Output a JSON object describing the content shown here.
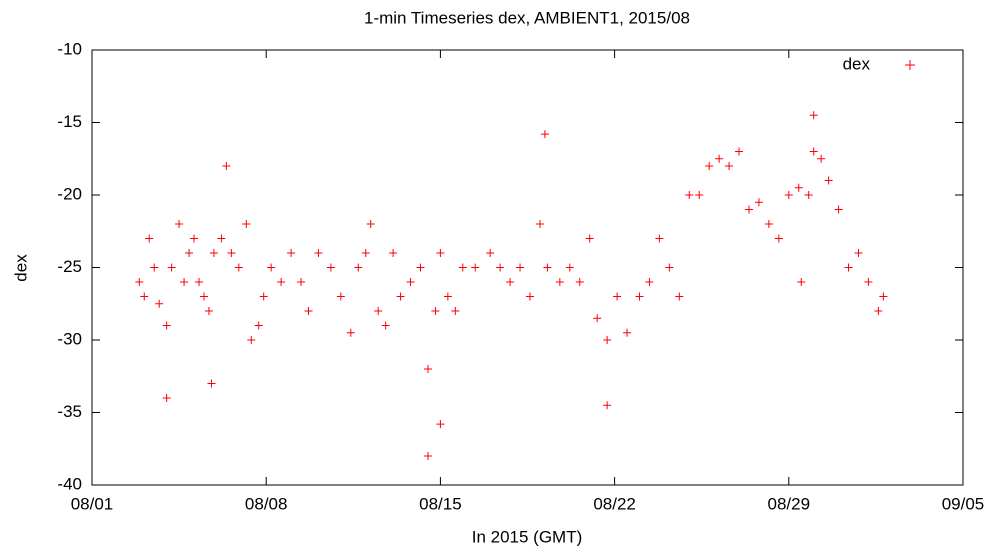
{
  "chart_data": {
    "type": "scatter",
    "title": "1-min Timeseries dex, AMBIENT1, 2015/08",
    "x_label": "In 2015 (GMT)",
    "y_label": "dex",
    "x": [
      2.9,
      3.1,
      3.3,
      3.5,
      3.7,
      4.0,
      4.0,
      4.2,
      4.5,
      4.7,
      4.9,
      5.1,
      5.3,
      5.5,
      5.7,
      5.8,
      5.9,
      6.2,
      6.4,
      6.6,
      6.9,
      7.2,
      7.4,
      7.7,
      7.9,
      8.2,
      8.6,
      9.0,
      9.4,
      9.7,
      10.1,
      10.6,
      11.0,
      11.4,
      11.7,
      12.0,
      12.2,
      12.5,
      12.8,
      13.1,
      13.4,
      13.8,
      14.2,
      14.5,
      14.5,
      14.8,
      15.0,
      15.0,
      15.3,
      15.6,
      15.9,
      16.4,
      17.0,
      17.4,
      17.8,
      18.2,
      18.6,
      19.0,
      19.2,
      19.3,
      19.8,
      20.2,
      20.6,
      21.0,
      21.3,
      21.7,
      21.7,
      22.1,
      22.5,
      23.0,
      23.4,
      23.8,
      24.2,
      24.6,
      25.0,
      25.4,
      25.8,
      26.2,
      26.6,
      27.0,
      27.4,
      27.8,
      28.2,
      28.6,
      29.0,
      29.4,
      29.5,
      29.8,
      30.0,
      30.0,
      30.3,
      30.6,
      31.0,
      31.4,
      31.8,
      32.2,
      32.6,
      32.8
    ],
    "series": [
      {
        "name": "dex",
        "color": "#ff0000",
        "values": [
          -26,
          -27,
          -23,
          -25,
          -27.5,
          -29,
          -34,
          -25,
          -22,
          -26,
          -24,
          -23,
          -26,
          -27,
          -28,
          -33,
          -24,
          -23,
          -18,
          -24,
          -25,
          -22,
          -30,
          -29,
          -27,
          -25,
          -26,
          -24,
          -26,
          -28,
          -24,
          -25,
          -27,
          -29.5,
          -25,
          -24,
          -22,
          -28,
          -29,
          -24,
          -27,
          -26,
          -25,
          -32,
          -38,
          -28,
          -24,
          -35.8,
          -27,
          -28,
          -25,
          -25,
          -24,
          -25,
          -26,
          -25,
          -27,
          -22,
          -15.8,
          -25,
          -26,
          -25,
          -26,
          -23,
          -28.5,
          -30,
          -34.5,
          -27,
          -29.5,
          -27,
          -26,
          -23,
          -25,
          -27,
          -20,
          -20,
          -18,
          -17.5,
          -18,
          -17,
          -21,
          -20.5,
          -22,
          -23,
          -20,
          -19.5,
          -26,
          -20,
          -17,
          -14.5,
          -17.5,
          -19,
          -21,
          -25,
          -24,
          -26,
          -28,
          -27
        ]
      }
    ],
    "xlim": [
      1,
      36
    ],
    "xticks": [
      {
        "value": 1,
        "label": "08/01"
      },
      {
        "value": 8,
        "label": "08/08"
      },
      {
        "value": 15,
        "label": "08/15"
      },
      {
        "value": 22,
        "label": "08/22"
      },
      {
        "value": 29,
        "label": "08/29"
      },
      {
        "value": 36,
        "label": "09/05"
      }
    ],
    "ylim": [
      -40,
      -10
    ],
    "yticks": [
      -40,
      -35,
      -30,
      -25,
      -20,
      -15,
      -10
    ],
    "grid": false,
    "legend": "top-right"
  }
}
